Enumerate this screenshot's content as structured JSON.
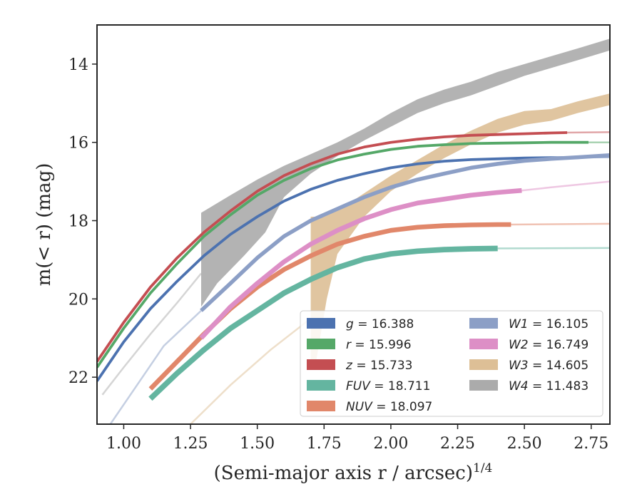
{
  "chart_data": {
    "type": "line",
    "xlabel": "(Semi-major axis r / arcsec)",
    "xlabel_superscript": "1/4",
    "ylabel": "m(< r) (mag)",
    "xlim": [
      0.9,
      2.82
    ],
    "ylim": [
      23.2,
      13.0
    ],
    "y_inverted": true,
    "grid": false,
    "legend_position": "lower-right",
    "x_ticks": [
      "1.00",
      "1.25",
      "1.50",
      "1.75",
      "2.00",
      "2.25",
      "2.50",
      "2.75"
    ],
    "x_tick_values": [
      1.0,
      1.25,
      1.5,
      1.75,
      2.0,
      2.25,
      2.5,
      2.75
    ],
    "y_ticks": [
      "14",
      "16",
      "18",
      "20",
      "22"
    ],
    "y_tick_values": [
      14,
      16,
      18,
      20,
      22
    ],
    "series": [
      {
        "name": "g",
        "label_value": "16.388",
        "color": "#4c72b0",
        "data_x": [
          0.9,
          1.0,
          1.1,
          1.2,
          1.3,
          1.4,
          1.5,
          1.6,
          1.7,
          1.8,
          1.9,
          2.0,
          2.1,
          2.2,
          2.3,
          2.4,
          2.5,
          2.6,
          2.65
        ],
        "data_y": [
          22.1,
          21.1,
          20.25,
          19.55,
          18.9,
          18.35,
          17.9,
          17.5,
          17.2,
          16.97,
          16.8,
          16.65,
          16.55,
          16.48,
          16.44,
          16.42,
          16.4,
          16.39,
          16.39
        ],
        "band": 0.07,
        "faint_x": [
          2.65,
          2.82
        ],
        "faint_y": [
          16.39,
          16.38
        ]
      },
      {
        "name": "r",
        "label_value": "15.996",
        "color": "#55a868",
        "data_x": [
          0.9,
          1.0,
          1.1,
          1.2,
          1.3,
          1.4,
          1.5,
          1.6,
          1.7,
          1.8,
          1.9,
          2.0,
          2.1,
          2.2,
          2.3,
          2.4,
          2.5,
          2.6,
          2.7,
          2.74
        ],
        "data_y": [
          21.75,
          20.75,
          19.85,
          19.1,
          18.4,
          17.85,
          17.35,
          16.97,
          16.67,
          16.45,
          16.3,
          16.18,
          16.1,
          16.06,
          16.03,
          16.02,
          16.01,
          16.0,
          16.0,
          16.0
        ],
        "band": 0.07,
        "faint_x": [
          2.74,
          2.82
        ],
        "faint_y": [
          16.0,
          16.0
        ]
      },
      {
        "name": "z",
        "label_value": "15.733",
        "color": "#c44e52",
        "data_x": [
          0.9,
          1.0,
          1.1,
          1.2,
          1.3,
          1.4,
          1.5,
          1.6,
          1.7,
          1.8,
          1.9,
          2.0,
          2.1,
          2.2,
          2.3,
          2.4,
          2.5,
          2.6,
          2.66
        ],
        "data_y": [
          21.6,
          20.6,
          19.7,
          18.95,
          18.3,
          17.75,
          17.25,
          16.85,
          16.55,
          16.3,
          16.12,
          16.0,
          15.92,
          15.86,
          15.82,
          15.8,
          15.78,
          15.76,
          15.75
        ],
        "band": 0.07,
        "faint_x": [
          2.66,
          2.82
        ],
        "faint_y": [
          15.75,
          15.74
        ]
      },
      {
        "name": "FUV",
        "label_value": "18.711",
        "color": "#64b5a0",
        "data_x": [
          1.1,
          1.2,
          1.3,
          1.4,
          1.5,
          1.6,
          1.7,
          1.8,
          1.9,
          2.0,
          2.1,
          2.2,
          2.3,
          2.4
        ],
        "data_y": [
          22.55,
          21.9,
          21.3,
          20.75,
          20.3,
          19.85,
          19.5,
          19.2,
          18.98,
          18.85,
          18.78,
          18.74,
          18.72,
          18.71
        ],
        "band": 0.14,
        "faint_x": [
          2.4,
          2.82
        ],
        "faint_y": [
          18.71,
          18.7
        ]
      },
      {
        "name": "NUV",
        "label_value": "18.097",
        "color": "#e1876a",
        "data_x": [
          1.1,
          1.2,
          1.3,
          1.4,
          1.5,
          1.6,
          1.7,
          1.8,
          1.9,
          2.0,
          2.1,
          2.2,
          2.3,
          2.4,
          2.45
        ],
        "data_y": [
          22.3,
          21.6,
          20.9,
          20.25,
          19.7,
          19.25,
          18.9,
          18.6,
          18.4,
          18.25,
          18.17,
          18.13,
          18.11,
          18.1,
          18.1
        ],
        "band": 0.12,
        "faint_x": [
          2.45,
          2.82
        ],
        "faint_y": [
          18.1,
          18.08
        ]
      },
      {
        "name": "W1",
        "label_value": "16.105",
        "color": "#8c9fc6",
        "data_x": [
          1.29,
          1.4,
          1.5,
          1.6,
          1.7,
          1.8,
          1.9,
          2.0,
          2.1,
          2.2,
          2.3,
          2.4,
          2.5,
          2.6,
          2.7,
          2.82
        ],
        "data_y": [
          20.3,
          19.6,
          18.95,
          18.4,
          18.0,
          17.7,
          17.4,
          17.15,
          16.95,
          16.8,
          16.65,
          16.55,
          16.47,
          16.42,
          16.38,
          16.33
        ],
        "band": 0.1,
        "faint_x": [
          0.95,
          1.05,
          1.15,
          1.29
        ],
        "faint_y": [
          23.2,
          22.2,
          21.2,
          20.3
        ]
      },
      {
        "name": "W2",
        "label_value": "16.749",
        "color": "#dd8fc6",
        "data_x": [
          1.29,
          1.4,
          1.5,
          1.6,
          1.7,
          1.8,
          1.9,
          2.0,
          2.1,
          2.2,
          2.3,
          2.4,
          2.49
        ],
        "data_y": [
          21.0,
          20.2,
          19.6,
          19.05,
          18.6,
          18.25,
          17.95,
          17.72,
          17.55,
          17.45,
          17.35,
          17.28,
          17.23
        ],
        "band": 0.12,
        "faint_x": [
          2.49,
          2.6,
          2.82
        ],
        "faint_y": [
          17.23,
          17.15,
          17.0
        ]
      },
      {
        "name": "W3",
        "label_value": "14.605",
        "color": "#ddbf96",
        "upper": [
          [
            1.7,
            17.9
          ],
          [
            1.75,
            17.9
          ],
          [
            1.8,
            17.75
          ],
          [
            1.9,
            17.3
          ],
          [
            2.0,
            16.85
          ],
          [
            2.1,
            16.45
          ],
          [
            2.2,
            16.05
          ],
          [
            2.3,
            15.7
          ],
          [
            2.4,
            15.4
          ],
          [
            2.5,
            15.2
          ],
          [
            2.6,
            15.15
          ],
          [
            2.7,
            14.95
          ],
          [
            2.82,
            14.75
          ]
        ],
        "lower": [
          [
            2.82,
            15.05
          ],
          [
            2.7,
            15.25
          ],
          [
            2.6,
            15.45
          ],
          [
            2.5,
            15.55
          ],
          [
            2.4,
            15.75
          ],
          [
            2.3,
            16.05
          ],
          [
            2.2,
            16.4
          ],
          [
            2.1,
            16.8
          ],
          [
            2.0,
            17.25
          ],
          [
            1.9,
            17.9
          ],
          [
            1.8,
            18.85
          ],
          [
            1.76,
            20.0
          ],
          [
            1.72,
            21.6
          ],
          [
            1.7,
            21.6
          ]
        ],
        "faint_x": [
          1.25,
          1.4,
          1.55,
          1.7
        ],
        "faint_y": [
          23.2,
          22.2,
          21.3,
          20.5
        ]
      },
      {
        "name": "W4",
        "label_value": "11.483",
        "color": "#ababab",
        "upper": [
          [
            1.29,
            17.8
          ],
          [
            1.4,
            17.35
          ],
          [
            1.5,
            16.95
          ],
          [
            1.6,
            16.6
          ],
          [
            1.7,
            16.3
          ],
          [
            1.8,
            16.0
          ],
          [
            1.9,
            15.65
          ],
          [
            2.0,
            15.25
          ],
          [
            2.1,
            14.9
          ],
          [
            2.2,
            14.65
          ],
          [
            2.3,
            14.45
          ],
          [
            2.4,
            14.2
          ],
          [
            2.5,
            14.0
          ],
          [
            2.6,
            13.8
          ],
          [
            2.7,
            13.6
          ],
          [
            2.82,
            13.35
          ]
        ],
        "lower": [
          [
            2.82,
            13.65
          ],
          [
            2.7,
            13.9
          ],
          [
            2.6,
            14.1
          ],
          [
            2.5,
            14.3
          ],
          [
            2.4,
            14.55
          ],
          [
            2.3,
            14.8
          ],
          [
            2.2,
            15.0
          ],
          [
            2.1,
            15.25
          ],
          [
            2.0,
            15.6
          ],
          [
            1.9,
            15.95
          ],
          [
            1.8,
            16.35
          ],
          [
            1.7,
            16.8
          ],
          [
            1.6,
            17.4
          ],
          [
            1.53,
            18.3
          ],
          [
            1.45,
            18.9
          ],
          [
            1.35,
            19.6
          ],
          [
            1.29,
            20.2
          ]
        ],
        "faint_x": [
          0.92,
          1.0,
          1.1,
          1.2,
          1.29
        ],
        "faint_y": [
          22.45,
          21.75,
          20.9,
          20.1,
          19.35
        ]
      }
    ],
    "legend": {
      "columns": [
        [
          {
            "symbol": "g",
            "text": " = 16.388",
            "color": "#4c72b0"
          },
          {
            "symbol": "r",
            "text": " = 15.996",
            "color": "#55a868"
          },
          {
            "symbol": "z",
            "text": " = 15.733",
            "color": "#c44e52"
          },
          {
            "symbol": "FUV",
            "text": " = 18.711",
            "color": "#64b5a0"
          },
          {
            "symbol": "NUV",
            "text": " = 18.097",
            "color": "#e1876a"
          }
        ],
        [
          {
            "symbol": "W1",
            "text": " = 16.105",
            "color": "#8c9fc6"
          },
          {
            "symbol": "W2",
            "text": " = 16.749",
            "color": "#dd8fc6"
          },
          {
            "symbol": "W3",
            "text": " = 14.605",
            "color": "#ddbf96"
          },
          {
            "symbol": "W4",
            "text": " = 11.483",
            "color": "#ababab"
          }
        ]
      ]
    }
  }
}
